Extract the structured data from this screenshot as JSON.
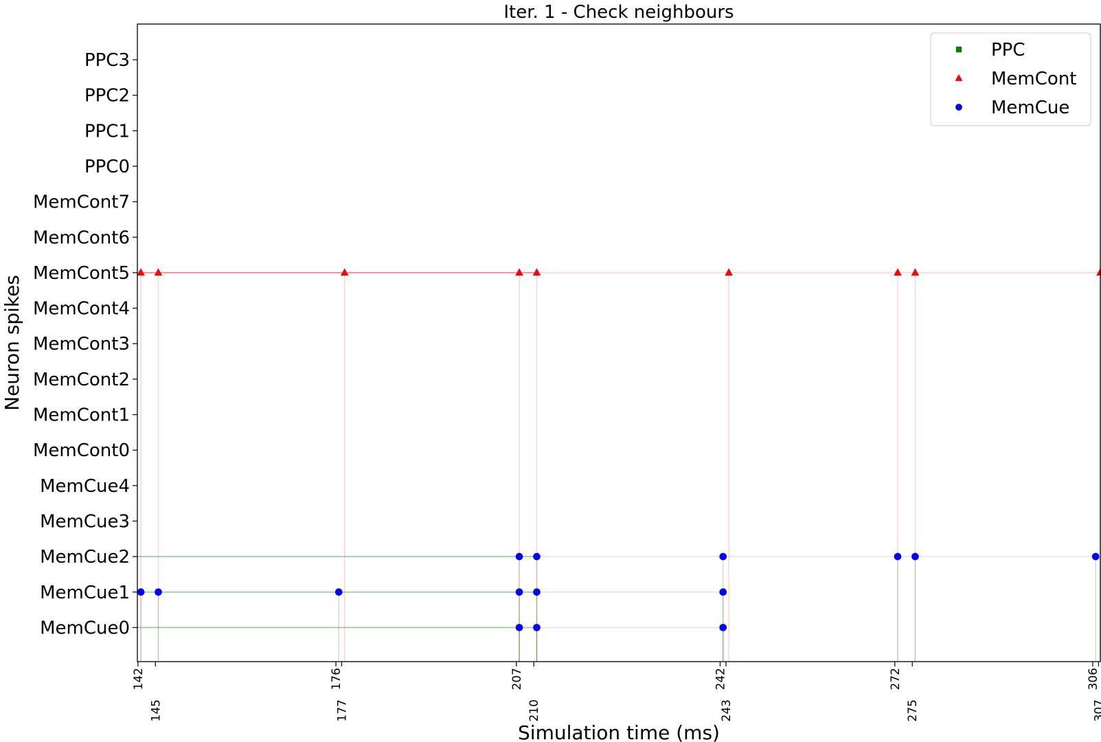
{
  "chart_data": {
    "type": "scatter",
    "title": "Iter. 1 - Check neighbours",
    "xlabel": "Simulation time (ms)",
    "ylabel": "Neuron spikes",
    "xlim": [
      141.9,
      307.3
    ],
    "y_categories": [
      "MemCue0",
      "MemCue1",
      "MemCue2",
      "MemCue3",
      "MemCue4",
      "MemCont0",
      "MemCont1",
      "MemCont2",
      "MemCont3",
      "MemCont4",
      "MemCont5",
      "MemCont6",
      "MemCont7",
      "PPC0",
      "PPC1",
      "PPC2",
      "PPC3"
    ],
    "x_ticks": [
      {
        "value": 142,
        "label": "142"
      },
      {
        "value": 145,
        "label": "145"
      },
      {
        "value": 176,
        "label": "176"
      },
      {
        "value": 177,
        "label": "177"
      },
      {
        "value": 207,
        "label": "207"
      },
      {
        "value": 210,
        "label": "210"
      },
      {
        "value": 242,
        "label": "242"
      },
      {
        "value": 243,
        "label": "243"
      },
      {
        "value": 272,
        "label": "272"
      },
      {
        "value": 275,
        "label": "275"
      },
      {
        "value": 306,
        "label": "306"
      },
      {
        "value": 307,
        "label": "307"
      }
    ],
    "grid": false,
    "legend_position": "top-right",
    "series": [
      {
        "name": "PPC",
        "marker": "square",
        "color": "#008000",
        "points": []
      },
      {
        "name": "MemCont",
        "marker": "triangle",
        "color": "#ff0000",
        "points": [
          {
            "x": 142.5,
            "y": "MemCont5"
          },
          {
            "x": 145.5,
            "y": "MemCont5"
          },
          {
            "x": 177.5,
            "y": "MemCont5"
          },
          {
            "x": 207.5,
            "y": "MemCont5"
          },
          {
            "x": 210.5,
            "y": "MemCont5"
          },
          {
            "x": 243.5,
            "y": "MemCont5"
          },
          {
            "x": 272.5,
            "y": "MemCont5"
          },
          {
            "x": 275.5,
            "y": "MemCont5"
          },
          {
            "x": 307.3,
            "y": "MemCont5"
          }
        ]
      },
      {
        "name": "MemCue",
        "marker": "circle",
        "color": "#0000ff",
        "points": [
          {
            "x": 142.5,
            "y": "MemCue1"
          },
          {
            "x": 145.5,
            "y": "MemCue1"
          },
          {
            "x": 176.5,
            "y": "MemCue1"
          },
          {
            "x": 207.5,
            "y": "MemCue1"
          },
          {
            "x": 210.5,
            "y": "MemCue1"
          },
          {
            "x": 242.5,
            "y": "MemCue1"
          },
          {
            "x": 207.5,
            "y": "MemCue0"
          },
          {
            "x": 210.5,
            "y": "MemCue0"
          },
          {
            "x": 242.5,
            "y": "MemCue0"
          },
          {
            "x": 207.5,
            "y": "MemCue2"
          },
          {
            "x": 210.5,
            "y": "MemCue2"
          },
          {
            "x": 242.5,
            "y": "MemCue2"
          },
          {
            "x": 272.5,
            "y": "MemCue2"
          },
          {
            "x": 275.5,
            "y": "MemCue2"
          },
          {
            "x": 306.5,
            "y": "MemCue2"
          }
        ]
      }
    ]
  }
}
